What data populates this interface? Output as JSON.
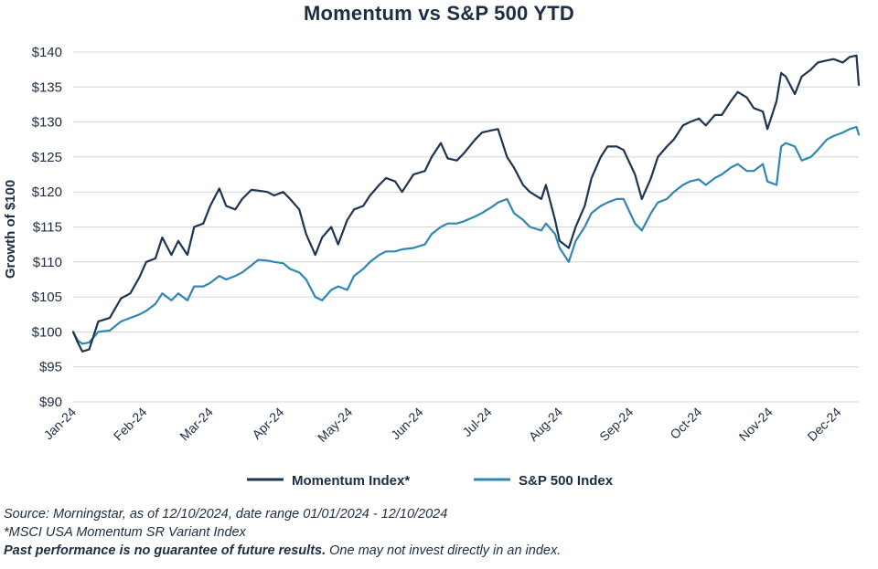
{
  "chart_data": {
    "type": "line",
    "title": "Momentum vs S&P 500 YTD",
    "ylabel": "Growth of $100",
    "xlabel": "",
    "ylim": [
      90,
      140
    ],
    "y_ticks": [
      "$90",
      "$95",
      "$100",
      "$105",
      "$110",
      "$115",
      "$120",
      "$125",
      "$130",
      "$135",
      "$140"
    ],
    "y_tick_values": [
      90,
      95,
      100,
      105,
      110,
      115,
      120,
      125,
      130,
      135,
      140
    ],
    "x_ticks": [
      "Jan-24",
      "Feb-24",
      "Mar-24",
      "Apr-24",
      "May-24",
      "Jun-24",
      "Jul-24",
      "Aug-24",
      "Sep-24",
      "Oct-24",
      "Nov-24",
      "Dec-24"
    ],
    "x_tick_dates": [
      "2024-01-01",
      "2024-02-01",
      "2024-03-01",
      "2024-04-01",
      "2024-05-01",
      "2024-06-01",
      "2024-07-01",
      "2024-08-01",
      "2024-09-01",
      "2024-10-01",
      "2024-11-01",
      "2024-12-01"
    ],
    "xlim": [
      "2024-01-01",
      "2024-12-10"
    ],
    "grid": "horizontal",
    "legend_position": "bottom",
    "series": [
      {
        "name": "Momentum Index*",
        "color": "#1e3550",
        "x": [
          "2024-01-01",
          "2024-01-03",
          "2024-01-05",
          "2024-01-08",
          "2024-01-12",
          "2024-01-17",
          "2024-01-22",
          "2024-01-26",
          "2024-01-30",
          "2024-02-02",
          "2024-02-06",
          "2024-02-09",
          "2024-02-13",
          "2024-02-16",
          "2024-02-20",
          "2024-02-23",
          "2024-02-27",
          "2024-03-01",
          "2024-03-05",
          "2024-03-08",
          "2024-03-12",
          "2024-03-15",
          "2024-03-19",
          "2024-03-22",
          "2024-03-26",
          "2024-03-29",
          "2024-04-02",
          "2024-04-05",
          "2024-04-09",
          "2024-04-12",
          "2024-04-16",
          "2024-04-19",
          "2024-04-23",
          "2024-04-26",
          "2024-04-30",
          "2024-05-03",
          "2024-05-07",
          "2024-05-10",
          "2024-05-14",
          "2024-05-17",
          "2024-05-21",
          "2024-05-24",
          "2024-05-29",
          "2024-06-03",
          "2024-06-06",
          "2024-06-10",
          "2024-06-13",
          "2024-06-17",
          "2024-06-20",
          "2024-06-25",
          "2024-06-28",
          "2024-07-02",
          "2024-07-05",
          "2024-07-09",
          "2024-07-12",
          "2024-07-16",
          "2024-07-19",
          "2024-07-24",
          "2024-07-26",
          "2024-07-30",
          "2024-08-01",
          "2024-08-05",
          "2024-08-08",
          "2024-08-12",
          "2024-08-15",
          "2024-08-19",
          "2024-08-22",
          "2024-08-26",
          "2024-08-29",
          "2024-09-03",
          "2024-09-06",
          "2024-09-10",
          "2024-09-13",
          "2024-09-17",
          "2024-09-20",
          "2024-09-24",
          "2024-09-27",
          "2024-10-01",
          "2024-10-04",
          "2024-10-08",
          "2024-10-11",
          "2024-10-15",
          "2024-10-18",
          "2024-10-22",
          "2024-10-25",
          "2024-10-29",
          "2024-10-31",
          "2024-11-04",
          "2024-11-06",
          "2024-11-08",
          "2024-11-12",
          "2024-11-15",
          "2024-11-19",
          "2024-11-22",
          "2024-11-26",
          "2024-11-29",
          "2024-12-03",
          "2024-12-06",
          "2024-12-09",
          "2024-12-10"
        ],
        "values": [
          100.0,
          98.5,
          97.2,
          97.5,
          101.5,
          102.0,
          104.8,
          105.5,
          107.8,
          110.0,
          110.5,
          113.5,
          111.0,
          113.0,
          111.0,
          115.0,
          115.5,
          118.0,
          120.5,
          118.0,
          117.5,
          119.0,
          120.3,
          120.2,
          120.0,
          119.5,
          120.0,
          119.0,
          117.5,
          114.0,
          111.0,
          113.5,
          115.0,
          112.5,
          116.0,
          117.5,
          118.0,
          119.5,
          121.0,
          122.0,
          121.5,
          120.0,
          122.5,
          123.0,
          125.0,
          127.0,
          124.8,
          124.5,
          125.5,
          127.5,
          128.5,
          128.8,
          129.0,
          125.0,
          123.5,
          121.0,
          120.0,
          119.0,
          121.0,
          116.0,
          113.0,
          112.0,
          115.0,
          118.0,
          122.0,
          125.0,
          126.5,
          126.5,
          126.0,
          122.5,
          119.0,
          122.0,
          125.0,
          126.5,
          127.5,
          129.5,
          130.0,
          130.5,
          129.5,
          131.0,
          131.0,
          133.0,
          134.3,
          133.5,
          132.0,
          131.5,
          129.0,
          133.0,
          137.0,
          136.5,
          134.0,
          136.5,
          137.5,
          138.5,
          138.8,
          139.0,
          138.5,
          139.3,
          139.5,
          135.3
        ]
      },
      {
        "name": "S&P 500 Index",
        "color": "#2f87b2",
        "x": [
          "2024-01-01",
          "2024-01-03",
          "2024-01-05",
          "2024-01-08",
          "2024-01-12",
          "2024-01-17",
          "2024-01-22",
          "2024-01-26",
          "2024-01-30",
          "2024-02-02",
          "2024-02-06",
          "2024-02-09",
          "2024-02-13",
          "2024-02-16",
          "2024-02-20",
          "2024-02-23",
          "2024-02-27",
          "2024-03-01",
          "2024-03-05",
          "2024-03-08",
          "2024-03-12",
          "2024-03-15",
          "2024-03-19",
          "2024-03-22",
          "2024-03-26",
          "2024-03-29",
          "2024-04-02",
          "2024-04-05",
          "2024-04-09",
          "2024-04-12",
          "2024-04-16",
          "2024-04-19",
          "2024-04-23",
          "2024-04-26",
          "2024-04-30",
          "2024-05-03",
          "2024-05-07",
          "2024-05-10",
          "2024-05-14",
          "2024-05-17",
          "2024-05-21",
          "2024-05-24",
          "2024-05-29",
          "2024-06-03",
          "2024-06-06",
          "2024-06-10",
          "2024-06-13",
          "2024-06-17",
          "2024-06-20",
          "2024-06-25",
          "2024-06-28",
          "2024-07-02",
          "2024-07-05",
          "2024-07-09",
          "2024-07-12",
          "2024-07-16",
          "2024-07-19",
          "2024-07-24",
          "2024-07-26",
          "2024-07-30",
          "2024-08-01",
          "2024-08-05",
          "2024-08-08",
          "2024-08-12",
          "2024-08-15",
          "2024-08-19",
          "2024-08-22",
          "2024-08-26",
          "2024-08-29",
          "2024-09-03",
          "2024-09-06",
          "2024-09-10",
          "2024-09-13",
          "2024-09-17",
          "2024-09-20",
          "2024-09-24",
          "2024-09-27",
          "2024-10-01",
          "2024-10-04",
          "2024-10-08",
          "2024-10-11",
          "2024-10-15",
          "2024-10-18",
          "2024-10-22",
          "2024-10-25",
          "2024-10-29",
          "2024-10-31",
          "2024-11-04",
          "2024-11-06",
          "2024-11-08",
          "2024-11-12",
          "2024-11-15",
          "2024-11-19",
          "2024-11-22",
          "2024-11-26",
          "2024-11-29",
          "2024-12-03",
          "2024-12-06",
          "2024-12-09",
          "2024-12-10"
        ],
        "values": [
          100.0,
          98.8,
          98.3,
          98.5,
          100.0,
          100.2,
          101.5,
          102.0,
          102.5,
          103.0,
          104.0,
          105.5,
          104.5,
          105.5,
          104.5,
          106.5,
          106.5,
          107.0,
          108.0,
          107.5,
          108.0,
          108.5,
          109.5,
          110.3,
          110.2,
          110.0,
          109.8,
          109.0,
          108.5,
          107.5,
          105.0,
          104.5,
          106.0,
          106.5,
          106.0,
          108.0,
          109.0,
          110.0,
          111.0,
          111.5,
          111.5,
          111.8,
          112.0,
          112.5,
          114.0,
          115.0,
          115.5,
          115.5,
          115.8,
          116.5,
          117.0,
          117.8,
          118.5,
          119.0,
          117.0,
          116.0,
          115.0,
          114.5,
          115.5,
          114.0,
          112.0,
          110.0,
          113.0,
          115.0,
          117.0,
          118.0,
          118.5,
          119.0,
          119.0,
          115.5,
          114.5,
          117.0,
          118.5,
          119.0,
          120.0,
          121.0,
          121.5,
          121.8,
          121.0,
          122.0,
          122.5,
          123.5,
          124.0,
          123.0,
          123.0,
          124.0,
          121.5,
          121.0,
          126.5,
          127.0,
          126.5,
          124.5,
          125.0,
          126.0,
          127.5,
          128.0,
          128.5,
          129.0,
          129.3,
          128.2
        ]
      }
    ]
  },
  "footnotes": {
    "source": "Source: Morningstar, as of 12/10/2024, date range 01/01/2024 - 12/10/2024",
    "index_note": "*MSCI USA Momentum SR Variant Index",
    "disclaimer_bold": "Past performance is no guarantee of future results.",
    "disclaimer_rest": " One may not invest directly in an index."
  }
}
